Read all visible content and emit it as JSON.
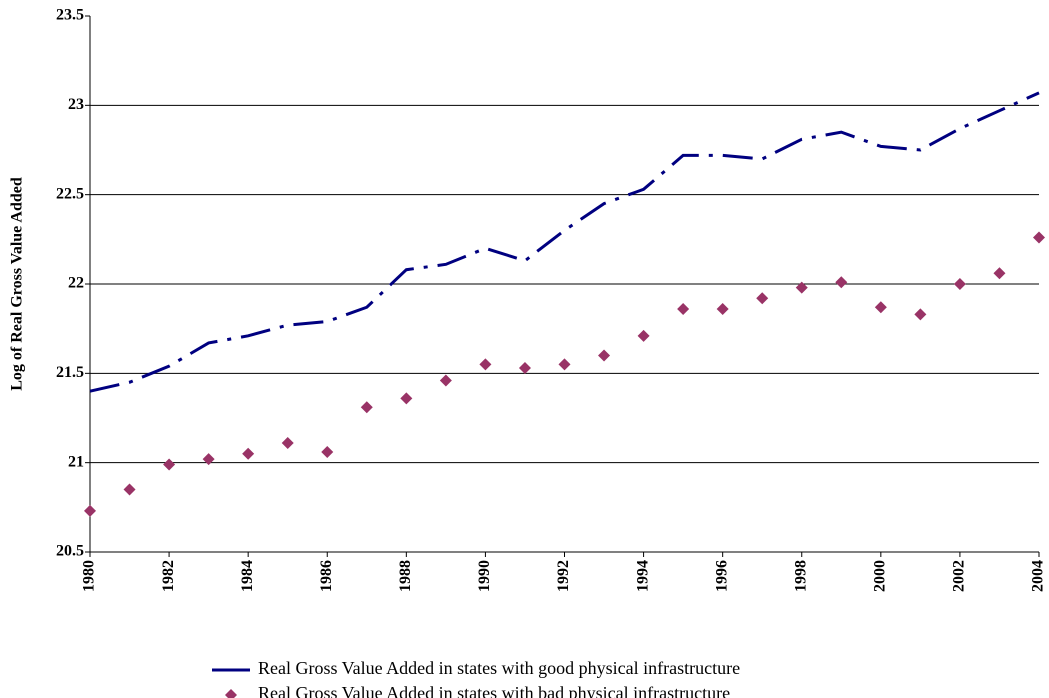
{
  "chart_data": {
    "type": "line",
    "y_label": "Log of Real Gross Value Added",
    "x": [
      1980,
      1981,
      1982,
      1983,
      1984,
      1985,
      1986,
      1987,
      1988,
      1989,
      1990,
      1991,
      1992,
      1993,
      1994,
      1995,
      1996,
      1997,
      1998,
      1999,
      2000,
      2001,
      2002,
      2003,
      2004
    ],
    "series": [
      {
        "name": "Real Gross Value Added in states with good physical infrastructure",
        "color": "#000080",
        "style": "dash-dot",
        "values": [
          21.4,
          21.45,
          21.54,
          21.67,
          21.71,
          21.77,
          21.79,
          21.87,
          22.08,
          22.11,
          22.2,
          22.13,
          22.3,
          22.45,
          22.53,
          22.72,
          22.72,
          22.7,
          22.81,
          22.85,
          22.77,
          22.75,
          22.87,
          22.97,
          23.07
        ]
      },
      {
        "name": "Real Gross Value Added in states with bad physical infrastructure",
        "color": "#993366",
        "style": "markers",
        "values": [
          20.73,
          20.85,
          20.99,
          21.02,
          21.05,
          21.11,
          21.06,
          21.31,
          21.36,
          21.46,
          21.55,
          21.53,
          21.55,
          21.6,
          21.71,
          21.86,
          21.86,
          21.92,
          21.98,
          22.01,
          21.87,
          21.83,
          22.0,
          22.06,
          22.26
        ]
      }
    ],
    "xlim": [
      1980,
      2004
    ],
    "xticks": [
      1980,
      1982,
      1984,
      1986,
      1988,
      1990,
      1992,
      1994,
      1996,
      1998,
      2000,
      2002,
      2004
    ],
    "ylim": [
      20.5,
      23.5
    ],
    "yticks": [
      20.5,
      21,
      21.5,
      22,
      22.5,
      23,
      23.5
    ],
    "grid": true,
    "legend": "bottom"
  }
}
